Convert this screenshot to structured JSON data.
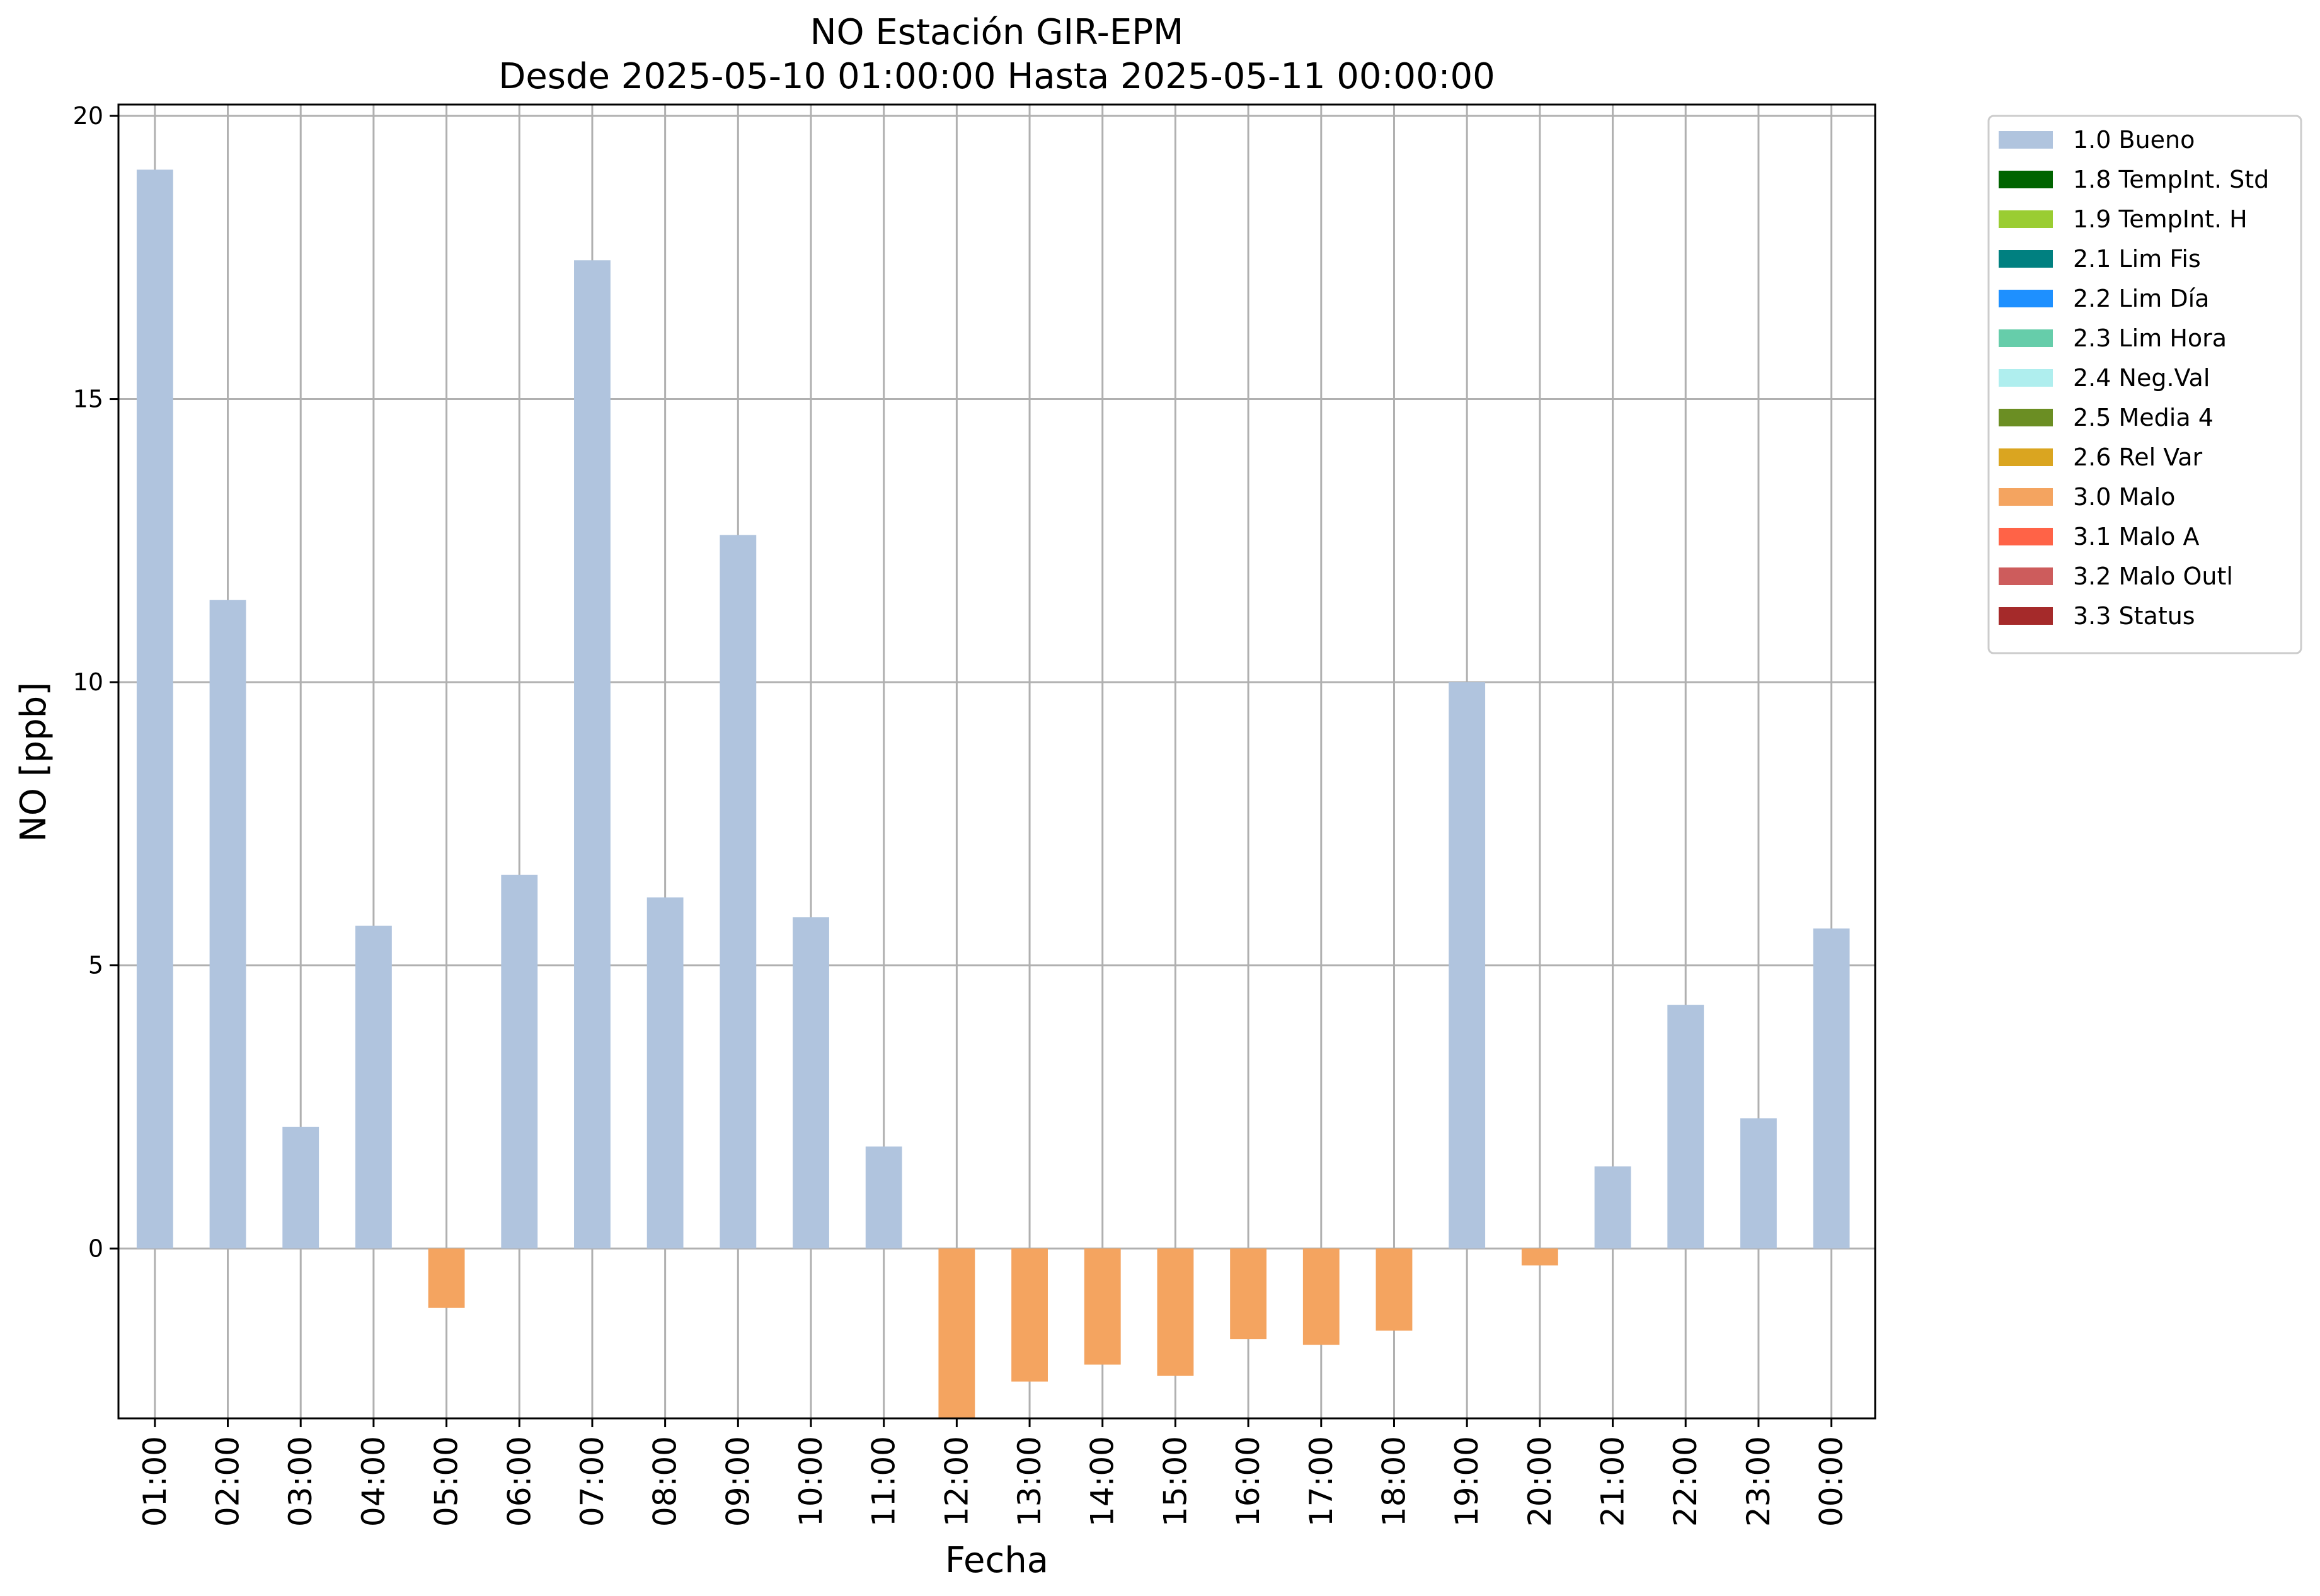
{
  "chart_data": {
    "type": "bar",
    "title": "NO Estación GIR-EPM",
    "subtitle": "Desde 2025-05-10 01:00:00 Hasta 2025-05-11 00:00:00",
    "xlabel": "Fecha",
    "ylabel": "NO [ppb]",
    "ylim": [
      -3.0,
      20.2
    ],
    "yticks": [
      0,
      5,
      10,
      15,
      20
    ],
    "grid": true,
    "legend_position": "outside-top-right",
    "categories": [
      "01:00",
      "02:00",
      "03:00",
      "04:00",
      "05:00",
      "06:00",
      "07:00",
      "08:00",
      "09:00",
      "10:00",
      "11:00",
      "12:00",
      "13:00",
      "14:00",
      "15:00",
      "16:00",
      "17:00",
      "18:00",
      "19:00",
      "20:00",
      "21:00",
      "22:00",
      "23:00",
      "00:00"
    ],
    "values": [
      19.05,
      11.45,
      2.15,
      5.7,
      -1.05,
      6.6,
      17.45,
      6.2,
      12.6,
      5.85,
      1.8,
      -3.0,
      -2.35,
      -2.05,
      -2.25,
      -1.6,
      -1.7,
      -1.45,
      10.0,
      -0.3,
      1.45,
      4.3,
      2.3,
      5.65
    ],
    "flags": [
      "1.0 Bueno",
      "1.0 Bueno",
      "1.0 Bueno",
      "1.0 Bueno",
      "3.0 Malo",
      "1.0 Bueno",
      "1.0 Bueno",
      "1.0 Bueno",
      "1.0 Bueno",
      "1.0 Bueno",
      "1.0 Bueno",
      "3.0 Malo",
      "3.0 Malo",
      "3.0 Malo",
      "3.0 Malo",
      "3.0 Malo",
      "3.0 Malo",
      "3.0 Malo",
      "1.0 Bueno",
      "3.0 Malo",
      "1.0 Bueno",
      "1.0 Bueno",
      "1.0 Bueno",
      "1.0 Bueno"
    ],
    "legend": [
      {
        "label": "1.0 Bueno",
        "color": "#b0c4de"
      },
      {
        "label": "1.8 TempInt. Std",
        "color": "#006400"
      },
      {
        "label": "1.9 TempInt. H",
        "color": "#9acd32"
      },
      {
        "label": "2.1 Lim Fis",
        "color": "#008080"
      },
      {
        "label": "2.2 Lim Día",
        "color": "#1e90ff"
      },
      {
        "label": "2.3 Lim Hora",
        "color": "#66cdaa"
      },
      {
        "label": "2.4 Neg.Val",
        "color": "#afeeee"
      },
      {
        "label": "2.5 Media 4",
        "color": "#6b8e23"
      },
      {
        "label": "2.6 Rel Var",
        "color": "#daa520"
      },
      {
        "label": "3.0 Malo",
        "color": "#f4a460"
      },
      {
        "label": "3.1 Malo A",
        "color": "#ff6347"
      },
      {
        "label": "3.2 Malo Outl",
        "color": "#cd5c5c"
      },
      {
        "label": "3.3 Status",
        "color": "#a52a2a"
      }
    ]
  }
}
